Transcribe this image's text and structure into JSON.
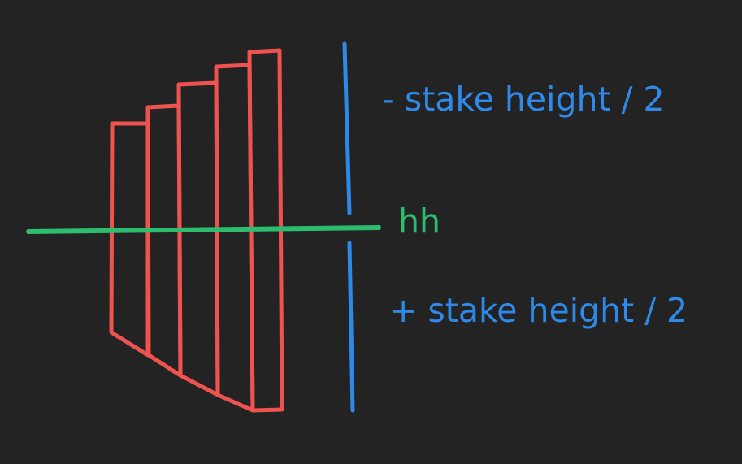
{
  "labels": {
    "top": "- stake height / 2",
    "middle": "hh",
    "bottom": "+ stake height / 2"
  },
  "colors": {
    "background": "#232323",
    "stakes": "#ef5350",
    "height_marker": "#2f89e8",
    "horizon": "#2ebd6e",
    "text_blue": "#2f89e8",
    "text_green": "#2ebd6e"
  }
}
